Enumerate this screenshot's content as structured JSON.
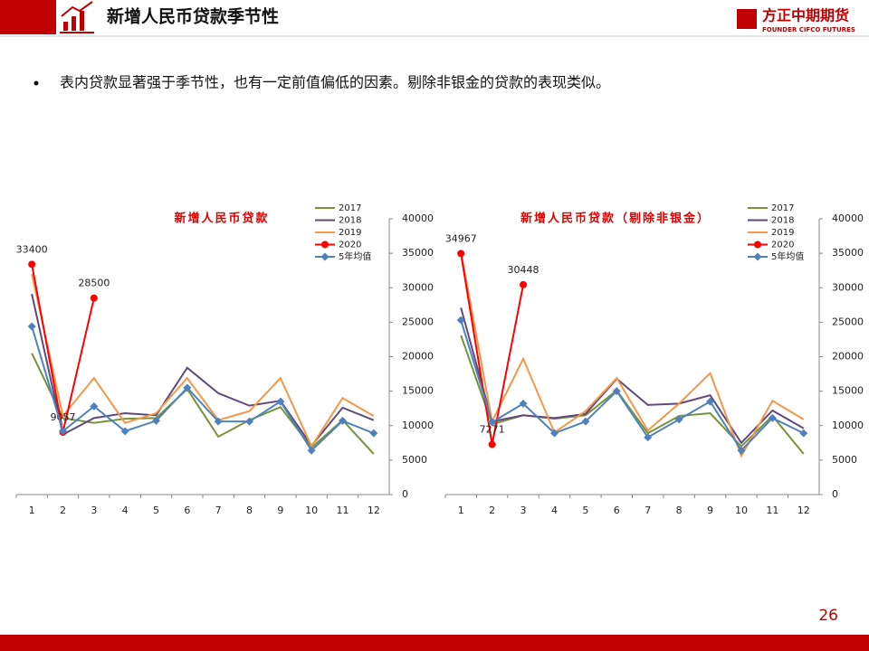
{
  "header": {
    "title": "新增人民币贷款季节性",
    "logo": "方正中期期货",
    "logo_sub": "FOUNDER CIFCO FUTURES"
  },
  "bullet": "表内贷款显著强于季节性，也有一定前值偏低的因素。剔除非银金的贷款的表现类似。",
  "page_number": "26",
  "chart_data": [
    {
      "type": "line",
      "title": "新增人民币贷款",
      "categories": [
        "1",
        "2",
        "3",
        "4",
        "5",
        "6",
        "7",
        "8",
        "9",
        "10",
        "11",
        "12"
      ],
      "ylim": [
        0,
        40000
      ],
      "yticks": [
        0,
        5000,
        10000,
        15000,
        20000,
        25000,
        30000,
        35000,
        40000
      ],
      "y_axis_side": "right",
      "legend": "top-right",
      "series": [
        {
          "name": "2017",
          "color": "#76933c",
          "marker": "none",
          "values": [
            20500,
            11100,
            10400,
            11000,
            11100,
            15300,
            8400,
            10800,
            12700,
            6800,
            10800,
            5900
          ]
        },
        {
          "name": "2018",
          "color": "#604a7b",
          "marker": "none",
          "values": [
            29100,
            8700,
            11100,
            11800,
            11500,
            18400,
            14700,
            12900,
            13600,
            7100,
            12600,
            10800
          ]
        },
        {
          "name": "2019",
          "color": "#f79646",
          "marker": "none",
          "values": [
            32000,
            11400,
            16900,
            10400,
            11800,
            16900,
            10800,
            12100,
            16900,
            7000,
            14000,
            11400
          ]
        },
        {
          "name": "2020",
          "color": "#ff0000",
          "marker": "circle",
          "data_labels": true,
          "values": [
            33400,
            9057,
            28500,
            null,
            null,
            null,
            null,
            null,
            null,
            null,
            null,
            null
          ]
        },
        {
          "name": "5年均值",
          "color": "#4f81bd",
          "marker": "diamond",
          "values": [
            24400,
            9200,
            12800,
            9200,
            10700,
            15500,
            10600,
            10600,
            13500,
            6400,
            10700,
            8900
          ]
        }
      ]
    },
    {
      "type": "line",
      "title": "新增人民币贷款（剔除非银金）",
      "categories": [
        "1",
        "2",
        "3",
        "4",
        "5",
        "6",
        "7",
        "8",
        "9",
        "10",
        "11",
        "12"
      ],
      "ylim": [
        0,
        40000
      ],
      "yticks": [
        0,
        5000,
        10000,
        15000,
        20000,
        25000,
        30000,
        35000,
        40000
      ],
      "y_axis_side": "right",
      "legend": "top-right",
      "series": [
        {
          "name": "2017",
          "color": "#76933c",
          "marker": "none",
          "values": [
            23100,
            10200,
            11500,
            11000,
            11500,
            15100,
            8900,
            11400,
            11800,
            7000,
            11400,
            5900
          ]
        },
        {
          "name": "2018",
          "color": "#604a7b",
          "marker": "none",
          "values": [
            27100,
            10600,
            11500,
            11100,
            11700,
            16800,
            13000,
            13200,
            14400,
            7500,
            12200,
            9600
          ]
        },
        {
          "name": "2019",
          "color": "#f79646",
          "marker": "none",
          "values": [
            35300,
            10600,
            19700,
            9000,
            12100,
            16900,
            9300,
            13200,
            17600,
            5600,
            13600,
            10900
          ]
        },
        {
          "name": "2020",
          "color": "#ff0000",
          "marker": "circle",
          "data_labels": true,
          "values": [
            34967,
            7271,
            30448,
            null,
            null,
            null,
            null,
            null,
            null,
            null,
            null,
            null
          ]
        },
        {
          "name": "5年均值",
          "color": "#4f81bd",
          "marker": "diamond",
          "values": [
            25300,
            10500,
            13200,
            8900,
            10600,
            15000,
            8300,
            10900,
            13500,
            6400,
            11100,
            8900
          ]
        }
      ]
    }
  ]
}
